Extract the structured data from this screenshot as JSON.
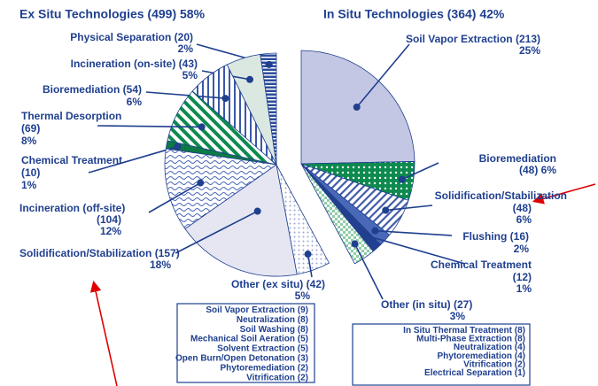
{
  "chart_data": {
    "type": "pie",
    "groups": [
      {
        "title": "Ex Situ Technologies (499) 58%",
        "slices": [
          {
            "name": "Physical Separation",
            "value": 20,
            "value_label": "(20)",
            "percent": 2,
            "percent_label": "2%",
            "color": "#2c4c9c"
          },
          {
            "name": "Incineration (on-site)",
            "value": 43,
            "value_label": "(43)",
            "percent": 5,
            "percent_label": "5%",
            "color": "#dbe7e1"
          },
          {
            "name": "Bioremediation",
            "value": 54,
            "value_label": "(54)",
            "percent": 6,
            "percent_label": "6%",
            "color": "#3a58a8"
          },
          {
            "name": "Thermal Desorption",
            "value": 69,
            "value_label": "(69)",
            "percent": 8,
            "percent_label": "8%",
            "color": "#0d8a4e"
          },
          {
            "name": "Chemical Treatment",
            "value": 10,
            "value_label": "(10)",
            "percent": 1,
            "percent_label": "1%",
            "color": "#0d7a45"
          },
          {
            "name": "Incineration (off-site)",
            "value": 104,
            "value_label": "(104)",
            "percent": 12,
            "percent_label": "12%",
            "color": "#4a68b8"
          },
          {
            "name": "Solidification/Stabilization",
            "value": 157,
            "value_label": "(157)",
            "percent": 18,
            "percent_label": "18%",
            "color": "#e6e6f3"
          },
          {
            "name": "Other (ex situ)",
            "value": 42,
            "value_label": "(42)",
            "percent": 5,
            "percent_label": "5%",
            "color": "#9aa6d4"
          }
        ],
        "other_breakdown": [
          {
            "name": "Soil Vapor Extraction",
            "value": 9,
            "value_label": "(9)"
          },
          {
            "name": "Neutralization",
            "value": 8,
            "value_label": "(8)"
          },
          {
            "name": "Soil Washing",
            "value": 8,
            "value_label": "(8)"
          },
          {
            "name": "Mechanical Soil Aeration",
            "value": 5,
            "value_label": "(5)"
          },
          {
            "name": "Solvent Extraction",
            "value": 5,
            "value_label": "(5)"
          },
          {
            "name": "Open Burn/Open Detonation",
            "value": 3,
            "value_label": "(3)"
          },
          {
            "name": "Phytoremediation",
            "value": 2,
            "value_label": "(2)"
          },
          {
            "name": "Vitrification",
            "value": 2,
            "value_label": "(2)"
          }
        ]
      },
      {
        "title": "In Situ Technologies (364) 42%",
        "slices": [
          {
            "name": "Soil Vapor Extraction",
            "value": 213,
            "value_label": "(213)",
            "percent": 25,
            "percent_label": "25%",
            "color": "#c4c7e3"
          },
          {
            "name": "Bioremediation",
            "value": 48,
            "value_label": "(48)",
            "percent": 6,
            "percent_label": "6%",
            "color": "#0d8a4e"
          },
          {
            "name": "Solidification/Stabilization",
            "value": 48,
            "value_label": "(48)",
            "percent": 6,
            "percent_label": "6%",
            "color": "#3f5aa8"
          },
          {
            "name": "Flushing",
            "value": 16,
            "value_label": "(16)",
            "percent": 2,
            "percent_label": "2%",
            "color": "#4a68b8"
          },
          {
            "name": "Chemical Treatment",
            "value": 12,
            "value_label": "(12)",
            "percent": 1,
            "percent_label": "1%",
            "color": "#22408f"
          },
          {
            "name": "Other (in situ)",
            "value": 27,
            "value_label": "(27)",
            "percent": 3,
            "percent_label": "3%",
            "color": "#8fcca8"
          }
        ],
        "other_breakdown": [
          {
            "name": "In Situ Thermal Treatment",
            "value": 8,
            "value_label": "(8)"
          },
          {
            "name": "Multi-Phase Extraction",
            "value": 8,
            "value_label": "(8)"
          },
          {
            "name": "Neutralization",
            "value": 4,
            "value_label": "(4)"
          },
          {
            "name": "Phytoremediation",
            "value": 4,
            "value_label": "(4)"
          },
          {
            "name": "Vitrification",
            "value": 2,
            "value_label": "(2)"
          },
          {
            "name": "Electrical Separation",
            "value": 1,
            "value_label": "(1)"
          }
        ]
      }
    ]
  }
}
